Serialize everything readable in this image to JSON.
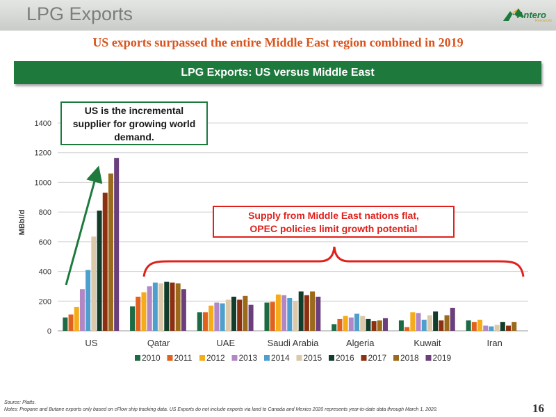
{
  "header": {
    "title": "LPG Exports"
  },
  "logo": {
    "name": "Antero",
    "sub": "Resources"
  },
  "subtitle": "US exports surpassed the entire Middle East region combined in 2019",
  "banner": "LPG Exports: US versus Middle East",
  "callouts": {
    "us": [
      "US is the incremental",
      "supplier for growing world",
      "demand."
    ],
    "middle_east": [
      "Supply from Middle East nations flat,",
      "OPEC policies limit growth potential"
    ]
  },
  "footer": {
    "source": "Source: Platts.",
    "notes": "Notes: Propane and Butane exports only based on cFlow ship tracking data.  US Exports do not include exports via land to Canada and Mexico 2020 represents year-to-date data through March 1, 2020.",
    "page": "16"
  },
  "colors": {
    "brand_green": "#1d7a3c",
    "accent_orange": "#d9541e",
    "callout_red": "#e0201b"
  },
  "chart_data": {
    "type": "bar",
    "title": "LPG Exports: US versus Middle East",
    "ylabel": "MBbl/d",
    "xlabel": "",
    "ylim": [
      0,
      1400
    ],
    "yticks": [
      0,
      200,
      400,
      600,
      800,
      1000,
      1200,
      1400
    ],
    "grid": true,
    "legend_position": "bottom",
    "categories": [
      "US",
      "Qatar",
      "UAE",
      "Saudi Arabia",
      "Algeria",
      "Kuwait",
      "Iran"
    ],
    "series": [
      {
        "name": "2010",
        "color": "#1d6b45",
        "values": [
          90,
          165,
          125,
          190,
          45,
          70,
          70
        ]
      },
      {
        "name": "2011",
        "color": "#e1611f",
        "values": [
          110,
          230,
          125,
          195,
          80,
          25,
          60
        ]
      },
      {
        "name": "2012",
        "color": "#f5ac1b",
        "values": [
          160,
          260,
          170,
          245,
          100,
          125,
          75
        ]
      },
      {
        "name": "2013",
        "color": "#b187c6",
        "values": [
          280,
          300,
          190,
          240,
          90,
          120,
          35
        ]
      },
      {
        "name": "2014",
        "color": "#4e9fcd",
        "values": [
          410,
          325,
          185,
          220,
          115,
          75,
          30
        ]
      },
      {
        "name": "2015",
        "color": "#dcc9a9",
        "values": [
          635,
          320,
          210,
          200,
          100,
          105,
          40
        ]
      },
      {
        "name": "2016",
        "color": "#113d2a",
        "values": [
          810,
          330,
          230,
          265,
          80,
          130,
          60
        ]
      },
      {
        "name": "2017",
        "color": "#8c3010",
        "values": [
          930,
          325,
          210,
          240,
          65,
          70,
          35
        ]
      },
      {
        "name": "2018",
        "color": "#9b6a1a",
        "values": [
          1060,
          320,
          235,
          265,
          70,
          105,
          60
        ]
      },
      {
        "name": "2019",
        "color": "#6b3f7c",
        "values": [
          1165,
          280,
          175,
          230,
          85,
          155,
          0
        ]
      }
    ]
  }
}
